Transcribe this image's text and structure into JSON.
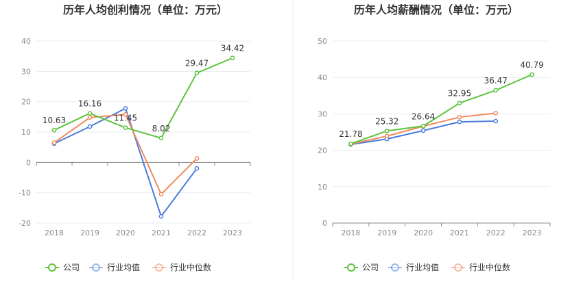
{
  "colors": {
    "company": "#5cc43c",
    "industry_avg": "#4a7bdc",
    "industry_median": "#f08a5d",
    "grid": "#e9ebf0",
    "axis": "#888888",
    "divider": "#eeeeee"
  },
  "chart_data": [
    {
      "type": "line",
      "title": "历年人均创利情况（单位：万元）",
      "categories": [
        "2018",
        "2019",
        "2020",
        "2021",
        "2022",
        "2023"
      ],
      "ylim": [
        -20,
        40
      ],
      "yticks": [
        -20,
        -10,
        0,
        10,
        20,
        30,
        40
      ],
      "grid": true,
      "legend": "bottom",
      "series": [
        {
          "name": "公司",
          "key": "company",
          "values": [
            10.63,
            16.16,
            11.45,
            8.02,
            29.47,
            34.42
          ],
          "labels": [
            "10.63",
            "16.16",
            "11.45",
            "8.02",
            "29.47",
            "34.42"
          ]
        },
        {
          "name": "行业均值",
          "key": "industry_avg",
          "values": [
            6.2,
            11.8,
            17.8,
            -17.8,
            -2.0,
            null
          ]
        },
        {
          "name": "行业中位数",
          "key": "industry_median",
          "values": [
            6.5,
            14.8,
            15.8,
            -10.5,
            1.3,
            null
          ]
        }
      ]
    },
    {
      "type": "line",
      "title": "历年人均薪酬情况（单位：万元）",
      "categories": [
        "2018",
        "2019",
        "2020",
        "2021",
        "2022",
        "2023"
      ],
      "ylim": [
        0,
        50
      ],
      "yticks": [
        0,
        10,
        20,
        30,
        40,
        50
      ],
      "grid": true,
      "legend": "bottom",
      "series": [
        {
          "name": "公司",
          "key": "company",
          "values": [
            21.78,
            25.32,
            26.64,
            32.95,
            36.47,
            40.79
          ],
          "labels": [
            "21.78",
            "25.32",
            "26.64",
            "32.95",
            "36.47",
            "40.79"
          ]
        },
        {
          "name": "行业均值",
          "key": "industry_avg",
          "values": [
            21.6,
            23.1,
            25.4,
            27.8,
            28.0,
            null
          ]
        },
        {
          "name": "行业中位数",
          "key": "industry_median",
          "values": [
            21.7,
            23.9,
            26.6,
            29.1,
            30.2,
            null
          ]
        }
      ]
    }
  ]
}
